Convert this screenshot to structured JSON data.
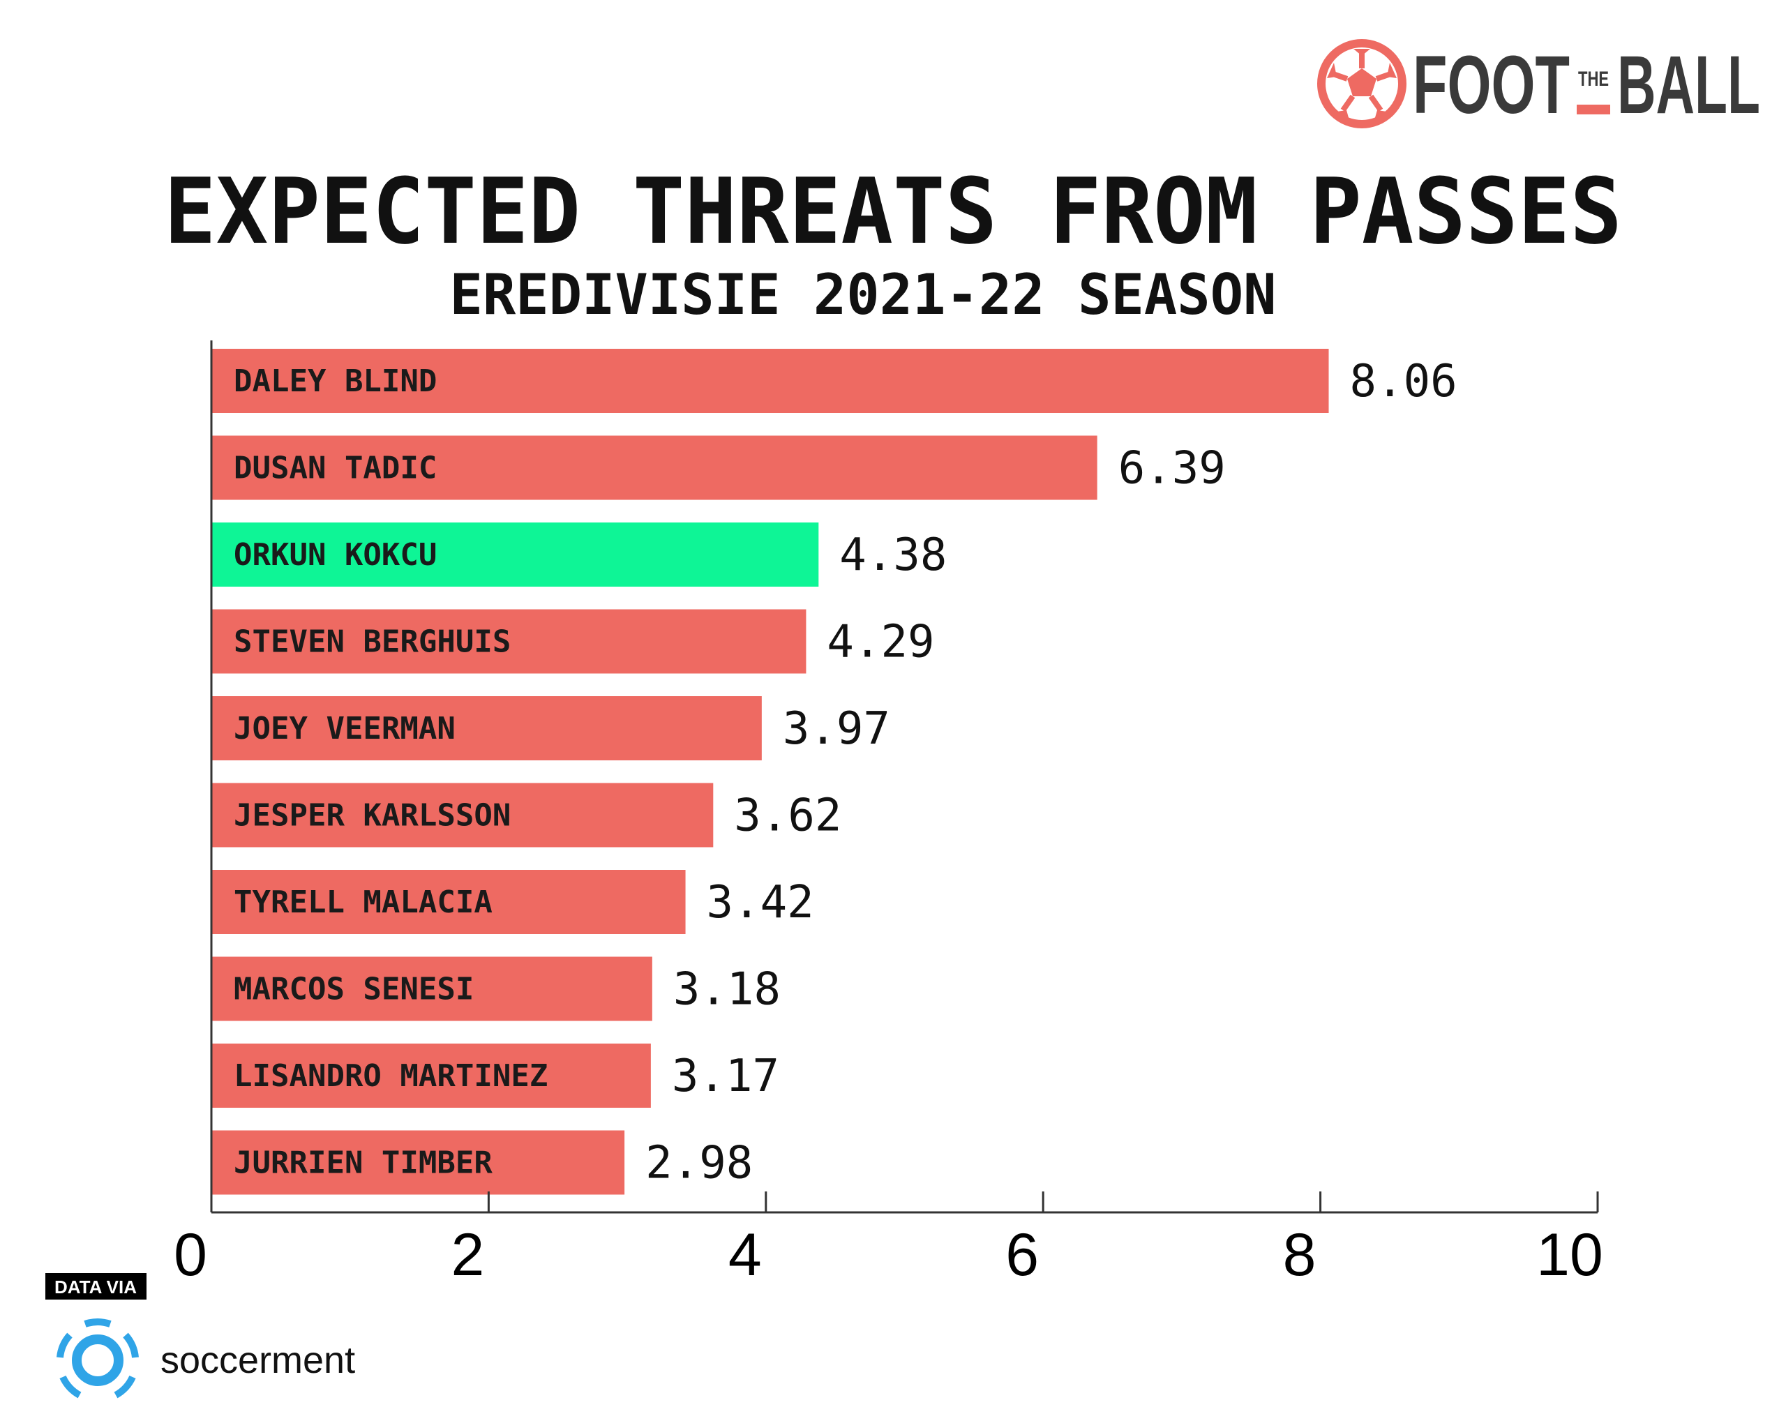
{
  "brand": {
    "left": "FOOT",
    "middle": "THE",
    "right": "BALL",
    "accent": "#ee6a62",
    "dark": "#3a3a3a"
  },
  "source": {
    "prefix": "DATA VIA",
    "name": "soccerment",
    "color": "#2fa4e7"
  },
  "chart_data": {
    "type": "bar",
    "orientation": "horizontal",
    "title": "EXPECTED THREATS FROM PASSES",
    "subtitle": "EREDIVISIE 2021-22 SEASON",
    "categories": [
      "DALEY BLIND",
      "DUSAN TADIC",
      "ORKUN KOKCU",
      "STEVEN BERGHUIS",
      "JOEY VEERMAN",
      "JESPER KARLSSON",
      "TYRELL MALACIA",
      "MARCOS SENESI",
      "LISANDRO MARTINEZ",
      "JURRIEN TIMBER"
    ],
    "values": [
      8.06,
      6.39,
      4.38,
      4.29,
      3.97,
      3.62,
      3.42,
      3.18,
      3.17,
      2.98
    ],
    "value_labels": [
      "8.06",
      "6.39",
      "4.38",
      "4.29",
      "3.97",
      "3.62",
      "3.42",
      "3.18",
      "3.17",
      "2.98"
    ],
    "highlight": "ORKUN KOKCU",
    "xlim": [
      0,
      10
    ],
    "xticks": [
      "0",
      "2",
      "4",
      "6",
      "8",
      "10"
    ],
    "colors": {
      "bar": "#ee6a62",
      "highlight": "#0ef596",
      "axis": "#333333"
    },
    "grid": false,
    "legend": "none"
  }
}
